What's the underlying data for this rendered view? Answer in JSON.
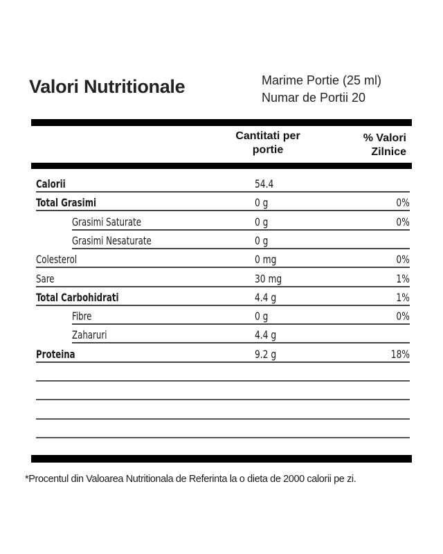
{
  "label": {
    "title": "Valori Nutritionale",
    "serving_size": "Marime Portie (25 ml)",
    "servings_count": "Numar de Portii 20",
    "header": {
      "quantity_line1": "Cantitati per",
      "quantity_line2": "portie",
      "daily_value_line1": "% Valori",
      "daily_value_line2": "Zilnice"
    },
    "rows": [
      {
        "name": "Calorii",
        "quantity": "54.4",
        "daily_value": "",
        "bold": true,
        "indent": false
      },
      {
        "name": "Total Grasimi",
        "quantity": "0 g",
        "daily_value": "0%",
        "bold": true,
        "indent": false
      },
      {
        "name": "Grasimi Saturate",
        "quantity": "0 g",
        "daily_value": "0%",
        "bold": false,
        "indent": true
      },
      {
        "name": "Grasimi Nesaturate",
        "quantity": "0 g",
        "daily_value": "",
        "bold": false,
        "indent": true
      },
      {
        "name": "Colesterol",
        "quantity": "0 mg",
        "daily_value": "0%",
        "bold": false,
        "indent": false
      },
      {
        "name": "Sare",
        "quantity": "30 mg",
        "daily_value": "1%",
        "bold": false,
        "indent": false
      },
      {
        "name": "Total Carbohidrati",
        "quantity": "4.4 g",
        "daily_value": "1%",
        "bold": true,
        "indent": false
      },
      {
        "name": "Fibre",
        "quantity": "0 g",
        "daily_value": "0%",
        "bold": false,
        "indent": true
      },
      {
        "name": "Zaharuri",
        "quantity": "4.4 g",
        "daily_value": "",
        "bold": false,
        "indent": true
      },
      {
        "name": "Proteina",
        "quantity": "9.2 g",
        "daily_value": "18%",
        "bold": true,
        "indent": false
      }
    ],
    "blank_rows": 4,
    "footnote": "*Procentul din Valoarea Nutritionala de Referinta la o dieta de 2000 calorii pe zi."
  }
}
